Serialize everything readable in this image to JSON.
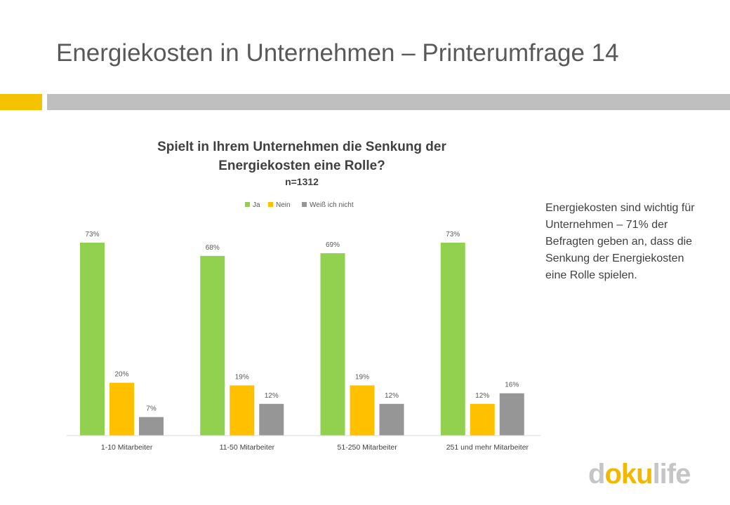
{
  "slide": {
    "title": "Energiekosten in Unternehmen – Printerumfrage 14",
    "accent_yellow": "#f5c200",
    "accent_gray": "#bfbfbf",
    "side_note": "Energiekosten sind wichtig für Unternehmen – 71% der Befragten geben an, dass die Senkung der Energiekosten eine Rolle spielen.",
    "logo": {
      "part1": "d",
      "part2": "o",
      "part3": "ku",
      "part4": "life"
    }
  },
  "chart_data": {
    "type": "bar",
    "title_line1": "Spielt in Ihrem Unternehmen die Senkung der",
    "title_line2": "Energiekosten eine Rolle?",
    "subtitle": "n=1312",
    "categories": [
      "1-10 Mitarbeiter",
      "11-50 Mitarbeiter",
      "51-250 Mitarbeiter",
      "251 und mehr Mitarbeiter"
    ],
    "series": [
      {
        "name": "Ja",
        "color": "#92d050",
        "values": [
          73,
          68,
          69,
          73
        ]
      },
      {
        "name": "Nein",
        "color": "#ffc000",
        "values": [
          20,
          19,
          19,
          12
        ]
      },
      {
        "name": "Weiß ich nicht",
        "color": "#969696",
        "values": [
          7,
          12,
          12,
          16
        ]
      }
    ],
    "value_suffix": "%",
    "ylim": [
      0,
      73
    ],
    "legend_position": "top-center",
    "grid": false
  }
}
